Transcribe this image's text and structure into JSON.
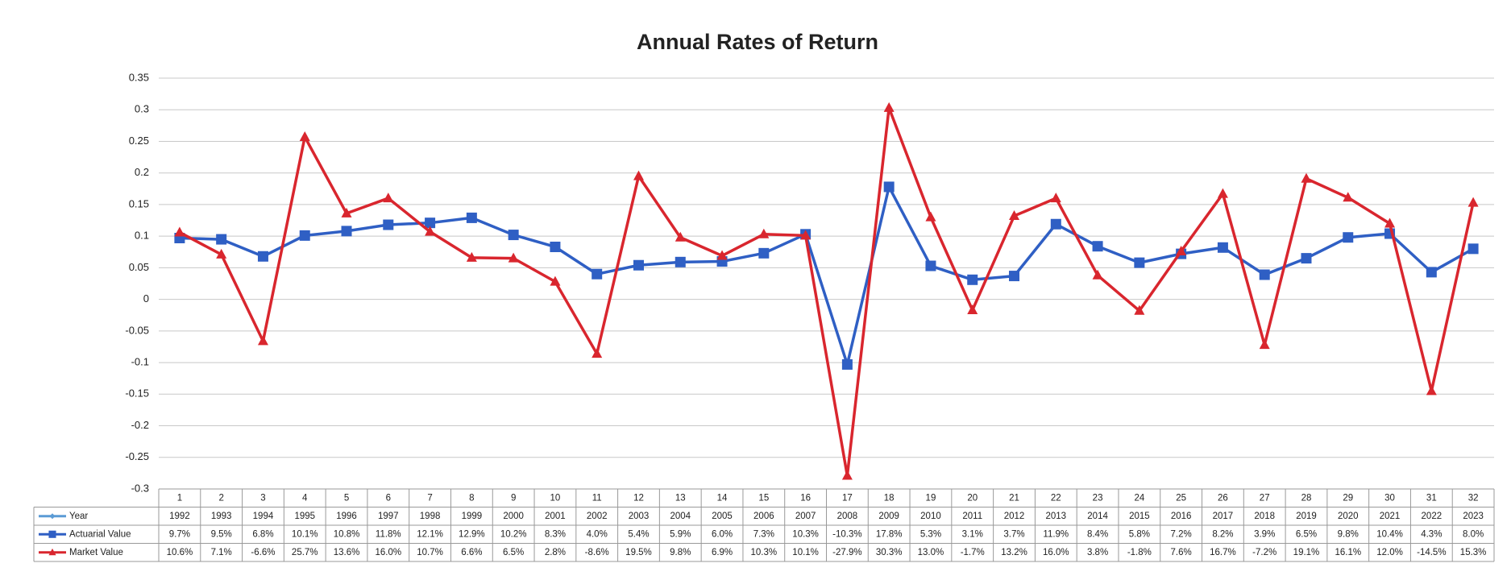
{
  "chart_data": {
    "type": "line",
    "title": "Annual Rates of Return",
    "categories": [
      1,
      2,
      3,
      4,
      5,
      6,
      7,
      8,
      9,
      10,
      11,
      12,
      13,
      14,
      15,
      16,
      17,
      18,
      19,
      20,
      21,
      22,
      23,
      24,
      25,
      26,
      27,
      28,
      29,
      30,
      31,
      32
    ],
    "ylim": [
      -0.3,
      0.35
    ],
    "yticks": [
      -0.3,
      -0.25,
      -0.2,
      -0.15,
      -0.1,
      -0.05,
      0,
      0.05,
      0.1,
      0.15,
      0.2,
      0.25,
      0.3,
      0.35
    ],
    "grid": true,
    "series": [
      {
        "name": "Year",
        "color": "#5b9bd5",
        "values": [
          1992,
          1993,
          1994,
          1995,
          1996,
          1997,
          1998,
          1999,
          2000,
          2001,
          2002,
          2003,
          2004,
          2005,
          2006,
          2007,
          2008,
          2009,
          2010,
          2011,
          2012,
          2013,
          2014,
          2015,
          2016,
          2017,
          2018,
          2019,
          2020,
          2021,
          2022,
          2023
        ]
      },
      {
        "name": "Actuarial Value",
        "color": "#2f5fc4",
        "values": [
          0.097,
          0.095,
          0.068,
          0.101,
          0.108,
          0.118,
          0.121,
          0.129,
          0.102,
          0.083,
          0.04,
          0.054,
          0.059,
          0.06,
          0.073,
          0.103,
          -0.103,
          0.178,
          0.053,
          0.031,
          0.037,
          0.119,
          0.084,
          0.058,
          0.072,
          0.082,
          0.039,
          0.065,
          0.098,
          0.104,
          0.043,
          0.08
        ],
        "value_labels": [
          "9.7%",
          "9.5%",
          "6.8%",
          "10.1%",
          "10.8%",
          "11.8%",
          "12.1%",
          "12.9%",
          "10.2%",
          "8.3%",
          "4.0%",
          "5.4%",
          "5.9%",
          "6.0%",
          "7.3%",
          "10.3%",
          "-10.3%",
          "17.8%",
          "5.3%",
          "3.1%",
          "3.7%",
          "11.9%",
          "8.4%",
          "5.8%",
          "7.2%",
          "8.2%",
          "3.9%",
          "6.5%",
          "9.8%",
          "10.4%",
          "4.3%",
          "8.0%"
        ]
      },
      {
        "name": "Market Value",
        "color": "#d9262e",
        "values": [
          0.106,
          0.071,
          -0.066,
          0.257,
          0.136,
          0.16,
          0.107,
          0.066,
          0.065,
          0.028,
          -0.086,
          0.195,
          0.098,
          0.069,
          0.103,
          0.101,
          -0.279,
          0.303,
          0.13,
          -0.017,
          0.132,
          0.16,
          0.038,
          -0.018,
          0.076,
          0.167,
          -0.072,
          0.191,
          0.161,
          0.12,
          -0.145,
          0.153
        ],
        "value_labels": [
          "10.6%",
          "7.1%",
          "-6.6%",
          "25.7%",
          "13.6%",
          "16.0%",
          "10.7%",
          "6.6%",
          "6.5%",
          "2.8%",
          "-8.6%",
          "19.5%",
          "9.8%",
          "6.9%",
          "10.3%",
          "10.1%",
          "-27.9%",
          "30.3%",
          "13.0%",
          "-1.7%",
          "13.2%",
          "16.0%",
          "3.8%",
          "-1.8%",
          "7.6%",
          "16.7%",
          "-7.2%",
          "19.1%",
          "16.1%",
          "12.0%",
          "-14.5%",
          "15.3%"
        ]
      }
    ]
  }
}
